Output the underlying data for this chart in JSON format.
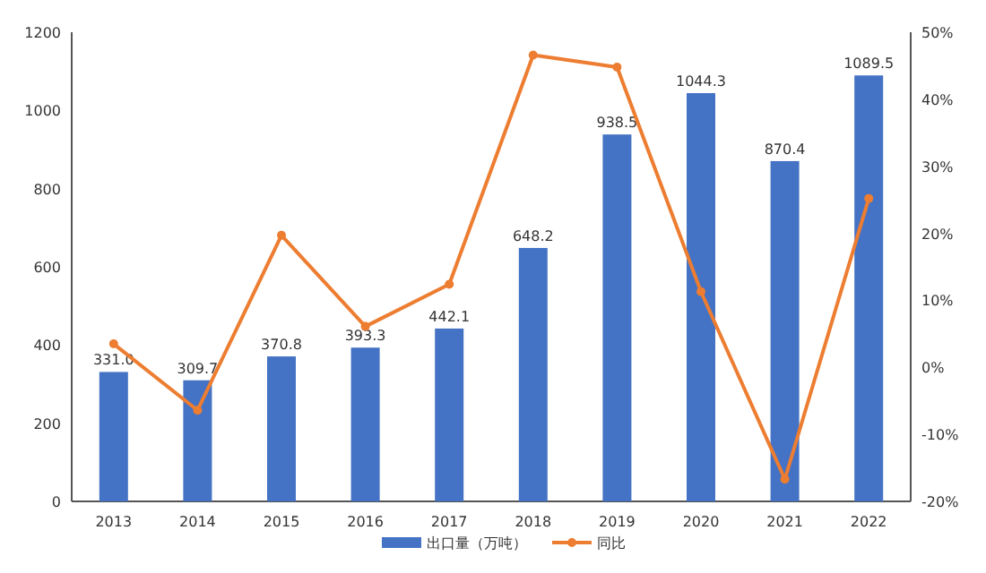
{
  "chart_data": {
    "type": "bar",
    "categories": [
      "2013",
      "2014",
      "2015",
      "2016",
      "2017",
      "2018",
      "2019",
      "2020",
      "2021",
      "2022"
    ],
    "series": [
      {
        "name": "出口量（万吨）",
        "color": "#4472c4",
        "values": [
          331.0,
          309.7,
          370.8,
          393.3,
          442.1,
          648.2,
          938.5,
          1044.3,
          870.4,
          1089.5
        ],
        "value_labels": [
          "331.0",
          "309.7",
          "370.8",
          "393.3",
          "442.1",
          "648.2",
          "938.5",
          "1044.3",
          "870.4",
          "1089.5"
        ]
      },
      {
        "name": "同比",
        "type": "line",
        "axis": "y2",
        "color": "#ed7d31",
        "values": [
          3.5,
          -6.4,
          19.7,
          6.1,
          12.4,
          46.6,
          44.8,
          11.3,
          -16.7,
          25.2
        ]
      }
    ],
    "ylim": [
      0,
      1200
    ],
    "yticks": [
      0,
      200,
      400,
      600,
      800,
      1000,
      1200
    ],
    "y2lim": [
      -20,
      50
    ],
    "y2ticks": [
      {
        "value": -20,
        "label": "-20%"
      },
      {
        "value": -10,
        "label": "-10%"
      },
      {
        "value": 0,
        "label": "0%"
      },
      {
        "value": 10,
        "label": "10%"
      },
      {
        "value": 20,
        "label": "20%"
      },
      {
        "value": 30,
        "label": "30%"
      },
      {
        "value": 40,
        "label": "40%"
      },
      {
        "value": 50,
        "label": "50%"
      }
    ],
    "marker": "circle",
    "legend": "bottom",
    "grid": false
  }
}
